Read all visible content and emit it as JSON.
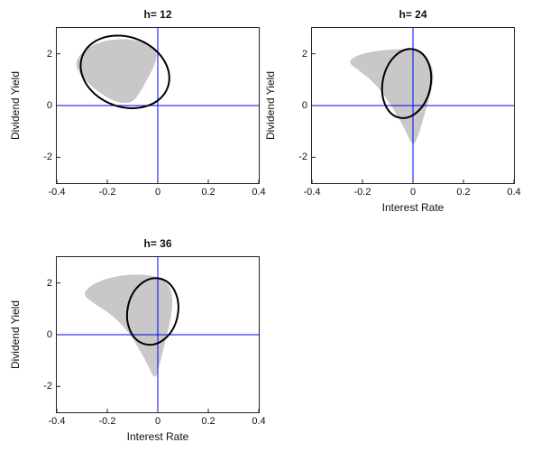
{
  "chart_data": [
    {
      "type": "area",
      "title": "h= 12",
      "xlabel": "",
      "ylabel": "Dividend Yield",
      "xlim": [
        -0.4,
        0.4
      ],
      "ylim": [
        -3,
        3
      ],
      "xticks": {
        "values": [
          -0.4,
          -0.2,
          0,
          0.2,
          0.4
        ],
        "labels": [
          "-0.4",
          "-0.2",
          "0",
          "0.2",
          "0.4"
        ]
      },
      "yticks": {
        "values": [
          -2,
          0,
          2
        ],
        "labels": [
          "-2",
          "0",
          "2"
        ]
      },
      "grid": false,
      "crosshair": {
        "x": 0,
        "y": 0,
        "color": "#0000ff"
      },
      "ellipse": {
        "cx": -0.13,
        "cy": 1.3,
        "rx": 0.18,
        "ry": 1.35,
        "rot_deg": 20,
        "color": "#000000"
      },
      "region": {
        "color": "#c8c8c8",
        "points": [
          [
            -0.33,
            1.5
          ],
          [
            -0.31,
            2.0
          ],
          [
            -0.25,
            2.4
          ],
          [
            -0.16,
            2.6
          ],
          [
            -0.06,
            2.5
          ],
          [
            0.0,
            2.15
          ],
          [
            -0.01,
            1.6
          ],
          [
            -0.04,
            1.05
          ],
          [
            -0.07,
            0.5
          ],
          [
            -0.1,
            0.12
          ],
          [
            -0.15,
            0.08
          ],
          [
            -0.22,
            0.4
          ],
          [
            -0.28,
            0.9
          ]
        ]
      }
    },
    {
      "type": "area",
      "title": "h= 24",
      "xlabel": "Interest Rate",
      "ylabel": "Dividend Yield",
      "xlim": [
        -0.4,
        0.4
      ],
      "ylim": [
        -3,
        3
      ],
      "xticks": {
        "values": [
          -0.4,
          -0.2,
          0,
          0.2,
          0.4
        ],
        "labels": [
          "-0.4",
          "-0.2",
          "0",
          "0.2",
          "0.4"
        ]
      },
      "yticks": {
        "values": [
          -2,
          0,
          2
        ],
        "labels": [
          "-2",
          "0",
          "2"
        ]
      },
      "grid": false,
      "crosshair": {
        "x": 0,
        "y": 0,
        "color": "#0000ff"
      },
      "ellipse": {
        "cx": -0.025,
        "cy": 0.85,
        "rx": 0.095,
        "ry": 1.35,
        "rot_deg": 12,
        "color": "#000000"
      },
      "region": {
        "color": "#c8c8c8",
        "points": [
          [
            -0.26,
            1.7
          ],
          [
            -0.21,
            2.0
          ],
          [
            -0.12,
            2.15
          ],
          [
            -0.02,
            2.2
          ],
          [
            0.05,
            2.0
          ],
          [
            0.08,
            1.45
          ],
          [
            0.08,
            0.8
          ],
          [
            0.06,
            0.15
          ],
          [
            0.04,
            -0.55
          ],
          [
            0.02,
            -1.2
          ],
          [
            0.0,
            -1.6
          ],
          [
            -0.03,
            -0.95
          ],
          [
            -0.07,
            -0.25
          ],
          [
            -0.11,
            0.35
          ],
          [
            -0.16,
            0.95
          ],
          [
            -0.22,
            1.4
          ]
        ]
      }
    },
    {
      "type": "area",
      "title": "h= 36",
      "xlabel": "Interest Rate",
      "ylabel": "Dividend Yield",
      "xlim": [
        -0.4,
        0.4
      ],
      "ylim": [
        -3,
        3
      ],
      "xticks": {
        "values": [
          -0.4,
          -0.2,
          0,
          0.2,
          0.4
        ],
        "labels": [
          "-0.4",
          "-0.2",
          "0",
          "0.2",
          "0.4"
        ]
      },
      "yticks": {
        "values": [
          -2,
          0,
          2
        ],
        "labels": [
          "-2",
          "0",
          "2"
        ]
      },
      "grid": false,
      "crosshair": {
        "x": 0,
        "y": 0,
        "color": "#0000ff"
      },
      "ellipse": {
        "cx": -0.02,
        "cy": 0.9,
        "rx": 0.1,
        "ry": 1.3,
        "rot_deg": 12,
        "color": "#000000"
      },
      "region": {
        "color": "#c8c8c8",
        "points": [
          [
            -0.3,
            1.55
          ],
          [
            -0.26,
            1.95
          ],
          [
            -0.18,
            2.25
          ],
          [
            -0.08,
            2.35
          ],
          [
            0.0,
            2.25
          ],
          [
            0.05,
            1.9
          ],
          [
            0.06,
            1.25
          ],
          [
            0.05,
            0.55
          ],
          [
            0.03,
            -0.25
          ],
          [
            0.01,
            -1.05
          ],
          [
            -0.01,
            -1.8
          ],
          [
            -0.04,
            -1.15
          ],
          [
            -0.08,
            -0.45
          ],
          [
            -0.12,
            0.15
          ],
          [
            -0.18,
            0.75
          ],
          [
            -0.25,
            1.2
          ]
        ]
      }
    }
  ]
}
